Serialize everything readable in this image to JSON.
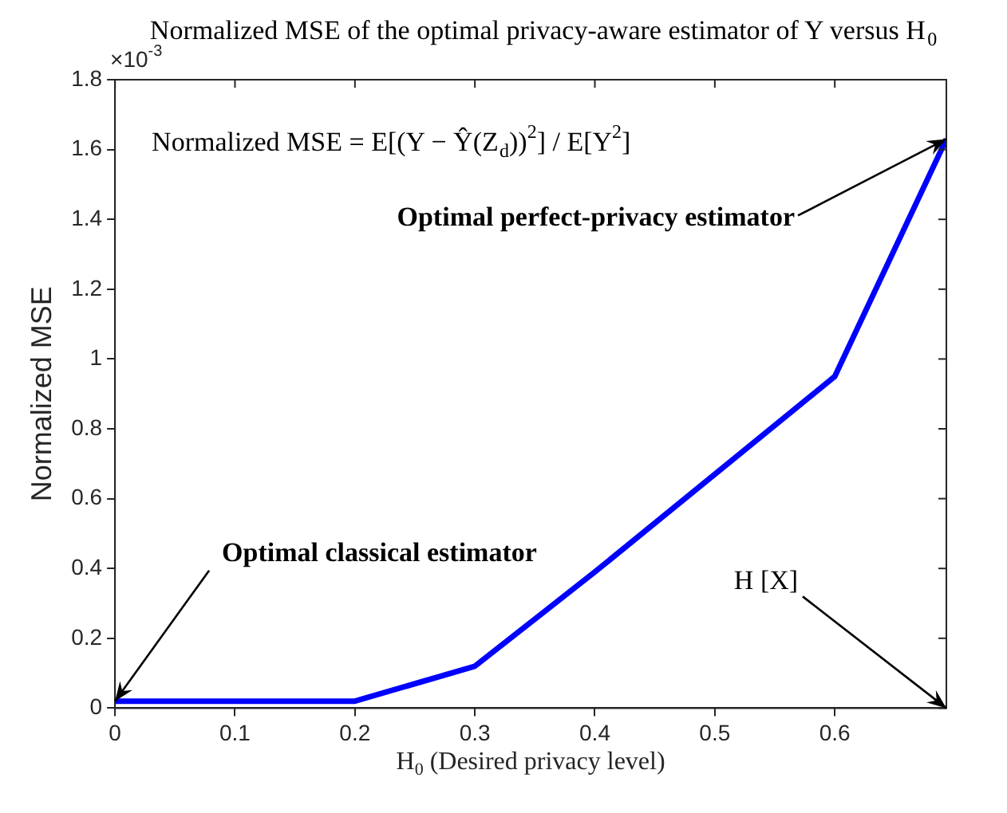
{
  "chart_data": {
    "type": "line",
    "title": "Normalized MSE of the optimal privacy-aware estimator of Y versus H$_{0}$",
    "xlabel": "H$_{0}$ (Desired privacy level)",
    "ylabel": "Normalized MSE",
    "x": [
      0,
      0.1,
      0.2,
      0.3,
      0.4,
      0.5,
      0.6,
      0.693
    ],
    "series": [
      {
        "color": "#0000ff",
        "values": [
          0.02,
          0.02,
          0.02,
          0.12,
          0.39,
          0.67,
          0.95,
          1.63
        ]
      }
    ],
    "xlim": [
      0,
      0.693
    ],
    "xticks": [
      0,
      0.1,
      0.2,
      0.3,
      0.4,
      0.5,
      0.6
    ],
    "ylim": [
      0,
      1.8
    ],
    "yticks": [
      0,
      0.2,
      0.4,
      0.6,
      0.8,
      1,
      1.2,
      1.4,
      1.6,
      1.8
    ],
    "grid": false,
    "legend": false,
    "marker": "none",
    "annotations": [
      "Normalized MSE = E[(Y − Ŷ(Z$_{d}$))$^{2}$] / E[Y$^{2}$]",
      "×10$^{-3}$",
      {
        "text": "Optimal perfect-privacy estimator",
        "x": 0.693,
        "y": 1.63
      },
      {
        "text": "Optimal classical estimator",
        "x": 0,
        "y": 0.02
      },
      "H [X]"
    ]
  }
}
